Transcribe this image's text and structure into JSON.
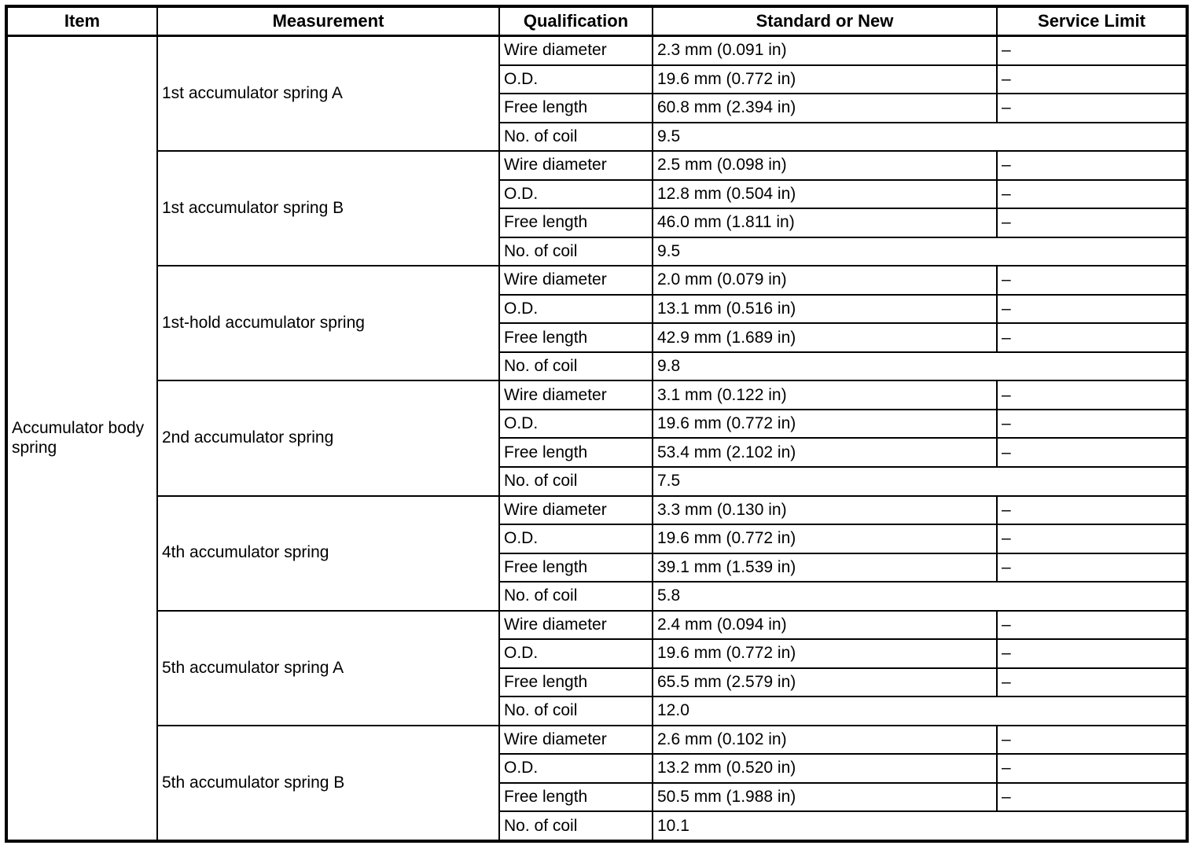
{
  "table": {
    "headers": [
      "Item",
      "Measurement",
      "Qualification",
      "Standard or New",
      "Service Limit"
    ],
    "item": "Accumulator body spring",
    "groups": [
      {
        "measurement": "1st accumulator spring A",
        "rows": [
          {
            "qualification": "Wire diameter",
            "standard": "2.3 mm (0.091 in)",
            "service_limit": "–"
          },
          {
            "qualification": "O.D.",
            "standard": "19.6 mm (0.772 in)",
            "service_limit": "–"
          },
          {
            "qualification": "Free length",
            "standard": "60.8 mm (2.394 in)",
            "service_limit": "–"
          },
          {
            "qualification": "No. of coil",
            "standard": "9.5",
            "service_limit": null
          }
        ]
      },
      {
        "measurement": "1st accumulator spring B",
        "rows": [
          {
            "qualification": "Wire diameter",
            "standard": "2.5 mm (0.098 in)",
            "service_limit": "–"
          },
          {
            "qualification": "O.D.",
            "standard": "12.8 mm (0.504 in)",
            "service_limit": "–"
          },
          {
            "qualification": "Free length",
            "standard": "46.0 mm (1.811 in)",
            "service_limit": "–"
          },
          {
            "qualification": "No. of coil",
            "standard": "9.5",
            "service_limit": null
          }
        ]
      },
      {
        "measurement": "1st-hold accumulator spring",
        "rows": [
          {
            "qualification": "Wire diameter",
            "standard": "2.0 mm (0.079 in)",
            "service_limit": "–"
          },
          {
            "qualification": "O.D.",
            "standard": "13.1 mm (0.516 in)",
            "service_limit": "–"
          },
          {
            "qualification": "Free length",
            "standard": "42.9 mm (1.689 in)",
            "service_limit": "–"
          },
          {
            "qualification": "No. of coil",
            "standard": "9.8",
            "service_limit": null
          }
        ]
      },
      {
        "measurement": "2nd accumulator spring",
        "rows": [
          {
            "qualification": "Wire diameter",
            "standard": "3.1 mm (0.122 in)",
            "service_limit": "–"
          },
          {
            "qualification": "O.D.",
            "standard": "19.6 mm (0.772 in)",
            "service_limit": "–"
          },
          {
            "qualification": "Free length",
            "standard": "53.4 mm (2.102 in)",
            "service_limit": "–"
          },
          {
            "qualification": "No. of coil",
            "standard": "7.5",
            "service_limit": null
          }
        ]
      },
      {
        "measurement": "4th accumulator spring",
        "rows": [
          {
            "qualification": "Wire diameter",
            "standard": "3.3 mm (0.130 in)",
            "service_limit": "–"
          },
          {
            "qualification": "O.D.",
            "standard": "19.6 mm (0.772 in)",
            "service_limit": "–"
          },
          {
            "qualification": "Free length",
            "standard": "39.1 mm (1.539 in)",
            "service_limit": "–"
          },
          {
            "qualification": "No. of coil",
            "standard": "5.8",
            "service_limit": null
          }
        ]
      },
      {
        "measurement": "5th accumulator spring A",
        "rows": [
          {
            "qualification": "Wire diameter",
            "standard": "2.4 mm (0.094 in)",
            "service_limit": "–"
          },
          {
            "qualification": "O.D.",
            "standard": "19.6 mm (0.772 in)",
            "service_limit": "–"
          },
          {
            "qualification": "Free length",
            "standard": "65.5 mm (2.579 in)",
            "service_limit": "–"
          },
          {
            "qualification": "No. of coil",
            "standard": "12.0",
            "service_limit": null
          }
        ]
      },
      {
        "measurement": "5th accumulator spring B",
        "rows": [
          {
            "qualification": "Wire diameter",
            "standard": "2.6 mm (0.102 in)",
            "service_limit": "–"
          },
          {
            "qualification": "O.D.",
            "standard": "13.2 mm (0.520 in)",
            "service_limit": "–"
          },
          {
            "qualification": "Free length",
            "standard": "50.5 mm (1.988 in)",
            "service_limit": "–"
          },
          {
            "qualification": "No. of coil",
            "standard": "10.1",
            "service_limit": null
          }
        ]
      }
    ]
  }
}
